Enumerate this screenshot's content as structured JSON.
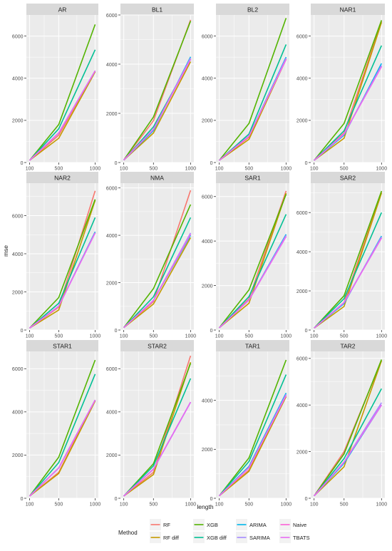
{
  "xlabel": "length",
  "ylabel": "mse",
  "legend": {
    "title": "Method",
    "items": [
      {
        "name": "RF",
        "color": "#F8766D"
      },
      {
        "name": "RF diff",
        "color": "#C49A00"
      },
      {
        "name": "XGB",
        "color": "#53B400"
      },
      {
        "name": "XGB diff",
        "color": "#00C094"
      },
      {
        "name": "ARIMA",
        "color": "#00B6EB"
      },
      {
        "name": "SARIMA",
        "color": "#A58AFF"
      },
      {
        "name": "Naive",
        "color": "#FB61D7"
      },
      {
        "name": "TBATS",
        "color": "#E76BF3"
      }
    ]
  },
  "chart_data": {
    "type": "line",
    "x": [
      100,
      500,
      1000
    ],
    "x_ticks": [
      "100",
      "500",
      "1000"
    ],
    "panels": [
      {
        "title": "AR",
        "ylim": [
          0,
          7000
        ],
        "yticks": [
          0,
          2000,
          4000,
          6000
        ],
        "series": [
          {
            "name": "RF",
            "values": [
              100,
              1300,
              4350
            ]
          },
          {
            "name": "RF diff",
            "values": [
              100,
              1150,
              4300
            ]
          },
          {
            "name": "XGB",
            "values": [
              100,
              1800,
              6550
            ]
          },
          {
            "name": "XGB diff",
            "values": [
              100,
              1600,
              5350
            ]
          },
          {
            "name": "ARIMA",
            "values": [
              100,
              1400,
              4350
            ]
          },
          {
            "name": "SARIMA",
            "values": [
              100,
              1400,
              4350
            ]
          },
          {
            "name": "Naive",
            "values": [
              100,
              1400,
              4350
            ]
          },
          {
            "name": "TBATS",
            "values": [
              100,
              1400,
              4350
            ]
          }
        ]
      },
      {
        "title": "BL1",
        "ylim": [
          0,
          6000
        ],
        "yticks": [
          0,
          2000,
          4000,
          6000
        ],
        "series": [
          {
            "name": "RF",
            "values": [
              100,
              1700,
              5800
            ]
          },
          {
            "name": "RF diff",
            "values": [
              100,
              1200,
              4100
            ]
          },
          {
            "name": "XGB",
            "values": [
              100,
              1850,
              5750
            ]
          },
          {
            "name": "XGB diff",
            "values": [
              100,
              1450,
              4200
            ]
          },
          {
            "name": "ARIMA",
            "values": [
              100,
              1300,
              4300
            ]
          },
          {
            "name": "SARIMA",
            "values": [
              100,
              1350,
              4250
            ]
          },
          {
            "name": "Naive",
            "values": [
              100,
              1350,
              4200
            ]
          },
          {
            "name": "TBATS",
            "values": [
              100,
              1350,
              4200
            ]
          }
        ]
      },
      {
        "title": "BL2",
        "ylim": [
          0,
          7000
        ],
        "yticks": [
          0,
          2000,
          4000,
          6000
        ],
        "series": [
          {
            "name": "RF",
            "values": [
              100,
              1200,
              4900
            ]
          },
          {
            "name": "RF diff",
            "values": [
              100,
              1100,
              4900
            ]
          },
          {
            "name": "XGB",
            "values": [
              100,
              1850,
              6850
            ]
          },
          {
            "name": "XGB diff",
            "values": [
              100,
              1350,
              5600
            ]
          },
          {
            "name": "ARIMA",
            "values": [
              100,
              1250,
              5000
            ]
          },
          {
            "name": "SARIMA",
            "values": [
              100,
              1250,
              4950
            ]
          },
          {
            "name": "Naive",
            "values": [
              100,
              1250,
              4900
            ]
          },
          {
            "name": "TBATS",
            "values": [
              100,
              1250,
              4900
            ]
          }
        ]
      },
      {
        "title": "NAR1",
        "ylim": [
          0,
          7000
        ],
        "yticks": [
          0,
          2000,
          4000,
          6000
        ],
        "series": [
          {
            "name": "RF",
            "values": [
              100,
              1400,
              6700
            ]
          },
          {
            "name": "RF diff",
            "values": [
              100,
              1150,
              6650
            ]
          },
          {
            "name": "XGB",
            "values": [
              100,
              1850,
              6750
            ]
          },
          {
            "name": "XGB diff",
            "values": [
              100,
              1500,
              5550
            ]
          },
          {
            "name": "ARIMA",
            "values": [
              100,
              1300,
              4700
            ]
          },
          {
            "name": "SARIMA",
            "values": [
              100,
              1350,
              4600
            ]
          },
          {
            "name": "Naive",
            "values": [
              100,
              1350,
              4550
            ]
          },
          {
            "name": "TBATS",
            "values": [
              100,
              1350,
              4550
            ]
          }
        ]
      },
      {
        "title": "NAR2",
        "ylim": [
          0,
          7700
        ],
        "yticks": [
          0,
          2000,
          4000,
          6000
        ],
        "series": [
          {
            "name": "RF",
            "values": [
              100,
              1200,
              7300
            ]
          },
          {
            "name": "RF diff",
            "values": [
              100,
              1050,
              6800
            ]
          },
          {
            "name": "XGB",
            "values": [
              100,
              1700,
              6850
            ]
          },
          {
            "name": "XGB diff",
            "values": [
              100,
              1400,
              5900
            ]
          },
          {
            "name": "ARIMA",
            "values": [
              100,
              1250,
              5150
            ]
          },
          {
            "name": "SARIMA",
            "values": [
              100,
              1250,
              5100
            ]
          },
          {
            "name": "Naive",
            "values": [
              100,
              1250,
              5100
            ]
          },
          {
            "name": "TBATS",
            "values": [
              100,
              1250,
              5100
            ]
          }
        ]
      },
      {
        "title": "NMA",
        "ylim": [
          0,
          6200
        ],
        "yticks": [
          0,
          2000,
          4000,
          6000
        ],
        "series": [
          {
            "name": "RF",
            "values": [
              100,
              1200,
              5900
            ]
          },
          {
            "name": "RF diff",
            "values": [
              100,
              1100,
              3900
            ]
          },
          {
            "name": "XGB",
            "values": [
              100,
              1750,
              5300
            ]
          },
          {
            "name": "XGB diff",
            "values": [
              100,
              1400,
              4750
            ]
          },
          {
            "name": "ARIMA",
            "values": [
              100,
              1250,
              4000
            ]
          },
          {
            "name": "SARIMA",
            "values": [
              100,
              1250,
              4100
            ]
          },
          {
            "name": "Naive",
            "values": [
              100,
              1250,
              4050
            ]
          },
          {
            "name": "TBATS",
            "values": [
              100,
              1250,
              4050
            ]
          }
        ]
      },
      {
        "title": "SAR1",
        "ylim": [
          0,
          6600
        ],
        "yticks": [
          0,
          2000,
          4000,
          6000
        ],
        "series": [
          {
            "name": "RF",
            "values": [
              100,
              1400,
              6250
            ]
          },
          {
            "name": "RF diff",
            "values": [
              100,
              1200,
              6150
            ]
          },
          {
            "name": "XGB",
            "values": [
              100,
              1800,
              6100
            ]
          },
          {
            "name": "XGB diff",
            "values": [
              100,
              1500,
              5200
            ]
          },
          {
            "name": "ARIMA",
            "values": [
              100,
              1350,
              4300
            ]
          },
          {
            "name": "SARIMA",
            "values": [
              100,
              1350,
              4250
            ]
          },
          {
            "name": "Naive",
            "values": [
              100,
              1350,
              4200
            ]
          },
          {
            "name": "TBATS",
            "values": [
              100,
              1350,
              4200
            ]
          }
        ]
      },
      {
        "title": "SAR2",
        "ylim": [
          0,
          7500
        ],
        "yticks": [
          0,
          2000,
          4000,
          6000
        ],
        "series": [
          {
            "name": "RF",
            "values": [
              100,
              1400,
              7050
            ]
          },
          {
            "name": "RF diff",
            "values": [
              100,
              1200,
              7000
            ]
          },
          {
            "name": "XGB",
            "values": [
              100,
              1750,
              7100
            ]
          },
          {
            "name": "XGB diff",
            "values": [
              100,
              1600,
              6000
            ]
          },
          {
            "name": "ARIMA",
            "values": [
              100,
              1350,
              4800
            ]
          },
          {
            "name": "SARIMA",
            "values": [
              100,
              1400,
              4750
            ]
          },
          {
            "name": "Naive",
            "values": [
              100,
              1400,
              4700
            ]
          },
          {
            "name": "TBATS",
            "values": [
              100,
              1400,
              4700
            ]
          }
        ]
      },
      {
        "title": "STAR1",
        "ylim": [
          0,
          6800
        ],
        "yticks": [
          0,
          2000,
          4000,
          6000
        ],
        "series": [
          {
            "name": "RF",
            "values": [
              100,
              1200,
              4550
            ]
          },
          {
            "name": "RF diff",
            "values": [
              100,
              1150,
              4500
            ]
          },
          {
            "name": "XGB",
            "values": [
              100,
              1900,
              6400
            ]
          },
          {
            "name": "XGB diff",
            "values": [
              100,
              1650,
              5750
            ]
          },
          {
            "name": "ARIMA",
            "values": [
              100,
              1400,
              4550
            ]
          },
          {
            "name": "SARIMA",
            "values": [
              100,
              1400,
              4550
            ]
          },
          {
            "name": "Naive",
            "values": [
              100,
              1400,
              4550
            ]
          },
          {
            "name": "TBATS",
            "values": [
              100,
              1400,
              4550
            ]
          }
        ]
      },
      {
        "title": "STAR2",
        "ylim": [
          0,
          6800
        ],
        "yticks": [
          0,
          2000,
          4000,
          6000
        ],
        "series": [
          {
            "name": "RF",
            "values": [
              100,
              1200,
              6600
            ]
          },
          {
            "name": "RF diff",
            "values": [
              100,
              1100,
              6300
            ]
          },
          {
            "name": "XGB",
            "values": [
              100,
              1600,
              6250
            ]
          },
          {
            "name": "XGB diff",
            "values": [
              100,
              1500,
              5550
            ]
          },
          {
            "name": "ARIMA",
            "values": [
              100,
              1350,
              4450
            ]
          },
          {
            "name": "SARIMA",
            "values": [
              100,
              1350,
              4450
            ]
          },
          {
            "name": "Naive",
            "values": [
              100,
              1350,
              4450
            ]
          },
          {
            "name": "TBATS",
            "values": [
              100,
              1350,
              4450
            ]
          }
        ]
      },
      {
        "title": "TAR1",
        "ylim": [
          0,
          6000
        ],
        "yticks": [
          0,
          2000,
          4000
        ],
        "series": [
          {
            "name": "RF",
            "values": [
              100,
              1150,
              4200
            ]
          },
          {
            "name": "RF diff",
            "values": [
              100,
              1100,
              4150
            ]
          },
          {
            "name": "XGB",
            "values": [
              100,
              1650,
              5650
            ]
          },
          {
            "name": "XGB diff",
            "values": [
              100,
              1500,
              5050
            ]
          },
          {
            "name": "ARIMA",
            "values": [
              100,
              1300,
              4300
            ]
          },
          {
            "name": "SARIMA",
            "values": [
              100,
              1250,
              4250
            ]
          },
          {
            "name": "Naive",
            "values": [
              100,
              1250,
              4200
            ]
          },
          {
            "name": "TBATS",
            "values": [
              100,
              1250,
              4200
            ]
          }
        ]
      },
      {
        "title": "TAR2",
        "ylim": [
          0,
          6300
        ],
        "yticks": [
          0,
          2000,
          4000,
          6000
        ],
        "series": [
          {
            "name": "RF",
            "values": [
              100,
              2000,
              5900
            ]
          },
          {
            "name": "RF diff",
            "values": [
              100,
              1350,
              5900
            ]
          },
          {
            "name": "XGB",
            "values": [
              100,
              1900,
              5950
            ]
          },
          {
            "name": "XGB diff",
            "values": [
              100,
              1700,
              4700
            ]
          },
          {
            "name": "ARIMA",
            "values": [
              100,
              1500,
              4000
            ]
          },
          {
            "name": "SARIMA",
            "values": [
              100,
              1550,
              4100
            ]
          },
          {
            "name": "Naive",
            "values": [
              100,
              1550,
              4000
            ]
          },
          {
            "name": "TBATS",
            "values": [
              100,
              1550,
              4000
            ]
          }
        ]
      }
    ]
  }
}
